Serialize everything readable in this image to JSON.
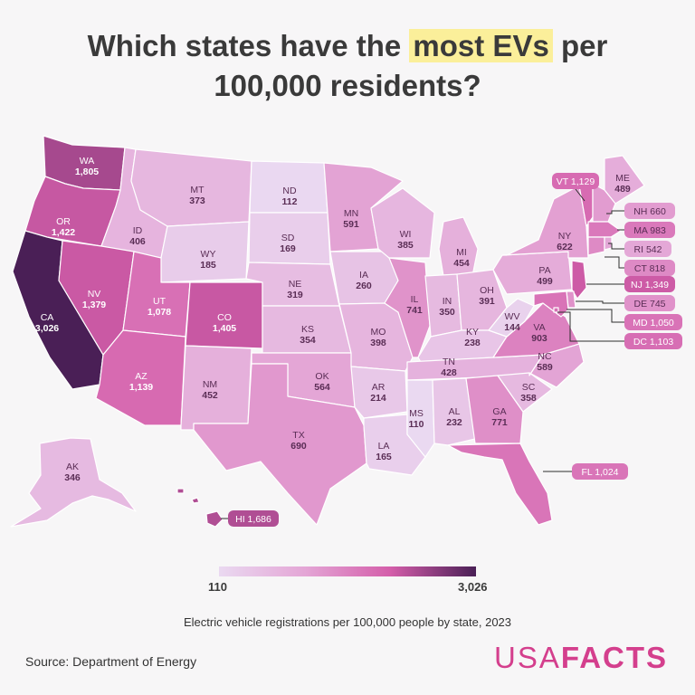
{
  "title_pre": "Which states have the ",
  "title_highlight": "most EVs",
  "title_post": " per",
  "title_line2": "100,000 residents?",
  "legend": {
    "min": "110",
    "max": "3,026"
  },
  "subtitle": "Electric vehicle registrations per 100,000 people by state, 2023",
  "source": "Source: Department of Energy",
  "logo": {
    "light": "USA",
    "bold": "FACTS"
  },
  "colors": {
    "low": "#ead9f1",
    "mid": "#d45eaa",
    "high": "#4a1f56",
    "highlight": "#fbef9a",
    "brand": "#d43f8d"
  },
  "states": [
    {
      "abbr": "WA",
      "value": "1,805",
      "num": 1805
    },
    {
      "abbr": "OR",
      "value": "1,422",
      "num": 1422
    },
    {
      "abbr": "CA",
      "value": "3,026",
      "num": 3026
    },
    {
      "abbr": "ID",
      "value": "406",
      "num": 406
    },
    {
      "abbr": "NV",
      "value": "1,379",
      "num": 1379
    },
    {
      "abbr": "MT",
      "value": "373",
      "num": 373
    },
    {
      "abbr": "WY",
      "value": "185",
      "num": 185
    },
    {
      "abbr": "UT",
      "value": "1,078",
      "num": 1078
    },
    {
      "abbr": "AZ",
      "value": "1,139",
      "num": 1139
    },
    {
      "abbr": "CO",
      "value": "1,405",
      "num": 1405
    },
    {
      "abbr": "NM",
      "value": "452",
      "num": 452
    },
    {
      "abbr": "ND",
      "value": "112",
      "num": 112
    },
    {
      "abbr": "SD",
      "value": "169",
      "num": 169
    },
    {
      "abbr": "NE",
      "value": "319",
      "num": 319
    },
    {
      "abbr": "KS",
      "value": "354",
      "num": 354
    },
    {
      "abbr": "OK",
      "value": "564",
      "num": 564
    },
    {
      "abbr": "TX",
      "value": "690",
      "num": 690
    },
    {
      "abbr": "MN",
      "value": "591",
      "num": 591
    },
    {
      "abbr": "IA",
      "value": "260",
      "num": 260
    },
    {
      "abbr": "MO",
      "value": "398",
      "num": 398
    },
    {
      "abbr": "AR",
      "value": "214",
      "num": 214
    },
    {
      "abbr": "LA",
      "value": "165",
      "num": 165
    },
    {
      "abbr": "WI",
      "value": "385",
      "num": 385
    },
    {
      "abbr": "IL",
      "value": "741",
      "num": 741
    },
    {
      "abbr": "MI",
      "value": "454",
      "num": 454
    },
    {
      "abbr": "IN",
      "value": "350",
      "num": 350
    },
    {
      "abbr": "OH",
      "value": "391",
      "num": 391
    },
    {
      "abbr": "KY",
      "value": "238",
      "num": 238
    },
    {
      "abbr": "TN",
      "value": "428",
      "num": 428
    },
    {
      "abbr": "MS",
      "value": "110",
      "num": 110
    },
    {
      "abbr": "AL",
      "value": "232",
      "num": 232
    },
    {
      "abbr": "GA",
      "value": "771",
      "num": 771
    },
    {
      "abbr": "FL",
      "value": "1,024",
      "num": 1024
    },
    {
      "abbr": "SC",
      "value": "358",
      "num": 358
    },
    {
      "abbr": "NC",
      "value": "589",
      "num": 589
    },
    {
      "abbr": "VA",
      "value": "903",
      "num": 903
    },
    {
      "abbr": "WV",
      "value": "144",
      "num": 144
    },
    {
      "abbr": "PA",
      "value": "499",
      "num": 499
    },
    {
      "abbr": "NY",
      "value": "622",
      "num": 622
    },
    {
      "abbr": "ME",
      "value": "489",
      "num": 489
    },
    {
      "abbr": "AK",
      "value": "346",
      "num": 346
    },
    {
      "abbr": "HI",
      "value": "1,686",
      "num": 1686
    },
    {
      "abbr": "VT",
      "value": "1,129",
      "num": 1129
    },
    {
      "abbr": "NH",
      "value": "660",
      "num": 660
    },
    {
      "abbr": "MA",
      "value": "983",
      "num": 983
    },
    {
      "abbr": "RI",
      "value": "542",
      "num": 542
    },
    {
      "abbr": "CT",
      "value": "818",
      "num": 818
    },
    {
      "abbr": "NJ",
      "value": "1,349",
      "num": 1349
    },
    {
      "abbr": "DE",
      "value": "745",
      "num": 745
    },
    {
      "abbr": "MD",
      "value": "1,050",
      "num": 1050
    },
    {
      "abbr": "DC",
      "value": "1,103",
      "num": 1103
    }
  ]
}
